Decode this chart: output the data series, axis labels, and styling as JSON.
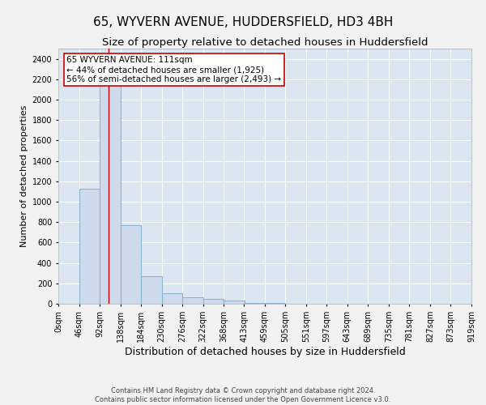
{
  "title": "65, WYVERN AVENUE, HUDDERSFIELD, HD3 4BH",
  "subtitle": "Size of property relative to detached houses in Huddersfield",
  "xlabel": "Distribution of detached houses by size in Huddersfield",
  "ylabel": "Number of detached properties",
  "footer_line1": "Contains HM Land Registry data © Crown copyright and database right 2024.",
  "footer_line2": "Contains public sector information licensed under the Open Government Licence v3.0.",
  "bin_labels": [
    "0sqm",
    "46sqm",
    "92sqm",
    "138sqm",
    "184sqm",
    "230sqm",
    "276sqm",
    "322sqm",
    "368sqm",
    "413sqm",
    "459sqm",
    "505sqm",
    "551sqm",
    "597sqm",
    "643sqm",
    "689sqm",
    "735sqm",
    "781sqm",
    "827sqm",
    "873sqm",
    "919sqm"
  ],
  "bar_values": [
    0,
    1130,
    2270,
    770,
    270,
    100,
    60,
    45,
    30,
    10,
    5,
    0,
    0,
    0,
    0,
    0,
    0,
    0,
    0,
    0
  ],
  "bin_edges": [
    0,
    46,
    92,
    138,
    184,
    230,
    276,
    322,
    368,
    413,
    459,
    505,
    551,
    597,
    643,
    689,
    735,
    781,
    827,
    873,
    919
  ],
  "bar_color": "#ccdaeb",
  "bar_edge_color": "#7aaac8",
  "property_size": 111,
  "vline_color": "#cc0000",
  "annotation_text": "65 WYVERN AVENUE: 111sqm\n← 44% of detached houses are smaller (1,925)\n56% of semi-detached houses are larger (2,493) →",
  "annotation_box_color": "#ffffff",
  "annotation_box_edge": "#cc0000",
  "ylim_max": 2500,
  "yticks": [
    0,
    200,
    400,
    600,
    800,
    1000,
    1200,
    1400,
    1600,
    1800,
    2000,
    2200,
    2400
  ],
  "background_color": "#dce6f0",
  "grid_color": "#ffffff",
  "fig_bg_color": "#f2f2f2",
  "title_fontsize": 11,
  "subtitle_fontsize": 9.5,
  "xlabel_fontsize": 9,
  "ylabel_fontsize": 8,
  "tick_fontsize": 7,
  "annotation_fontsize": 7.5,
  "footer_fontsize": 6
}
